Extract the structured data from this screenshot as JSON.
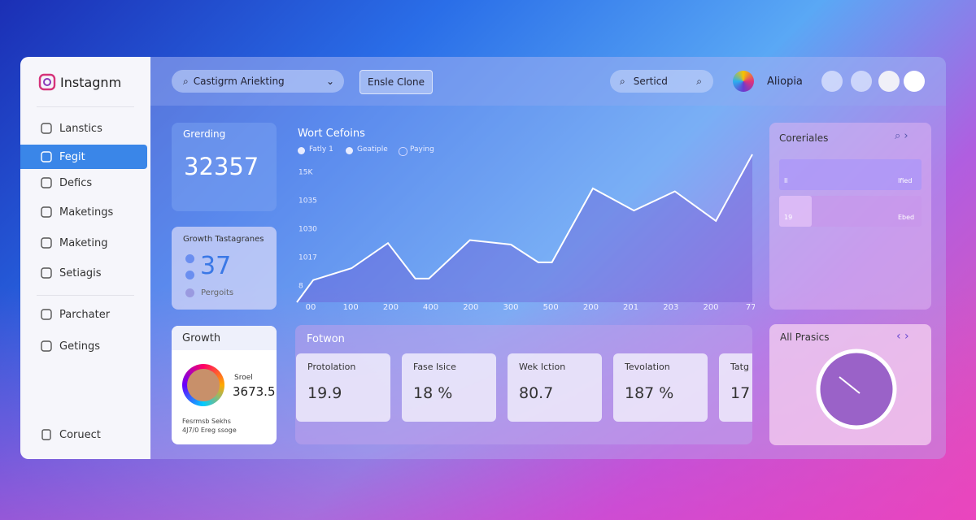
{
  "brand": "Instagnm",
  "nav": {
    "items": [
      "Lanstics",
      "Fegit",
      "Defics",
      "Maketings",
      "Maketing",
      "Setiagis",
      "Parchater",
      "Getings"
    ],
    "active": 1,
    "footer": "Coruect"
  },
  "topbar": {
    "search": "Castigrm Ariekting",
    "button": "Ensle Clone",
    "search2": "Serticd",
    "user": "Aliopia"
  },
  "card_trending": {
    "label": "Grerding",
    "value": "32357"
  },
  "card_growth_tags": {
    "label": "Growth Tastagranes",
    "value": "37",
    "note": "Pergoits"
  },
  "card_growth": {
    "title": "Growth",
    "small": "Sroel",
    "value": "3673.5",
    "line1": "Fesrmsb Sekhs",
    "line2": "4J7/0 Ereg ssoge"
  },
  "main_chart": {
    "type": "line",
    "title": "Wort Cefoins",
    "legend": [
      "Fatly 1",
      "Geatiple",
      "Paying"
    ],
    "y_labels": [
      "15K",
      "1035",
      "1030",
      "1017",
      "8"
    ],
    "x_labels": [
      "00",
      "100",
      "200",
      "400",
      "200",
      "300",
      "500",
      "200",
      "201",
      "203",
      "200",
      "77"
    ],
    "x": [
      0,
      3.6,
      12,
      20,
      26,
      29,
      38,
      47,
      53,
      56,
      65,
      74,
      83,
      92,
      100
    ],
    "values": [
      0,
      15,
      23,
      40,
      16,
      16,
      42,
      39,
      27,
      27,
      77,
      62,
      75,
      55,
      100
    ],
    "xlim": [
      0,
      100
    ],
    "ylim": [
      0,
      100
    ],
    "color": "#ffffff"
  },
  "categories_panel": {
    "title": "Coreriales",
    "rows": [
      [
        "Il",
        "Ified"
      ],
      [
        "19",
        "Ebed"
      ]
    ]
  },
  "bottom_panel": {
    "title": "Fotwon",
    "metrics": [
      {
        "label": "Protolation",
        "value": "19.9"
      },
      {
        "label": "Fase Isice",
        "value": "18 %"
      },
      {
        "label": "Wek Iction",
        "value": "80.7"
      },
      {
        "label": "Tevolation",
        "value": "187 %"
      },
      {
        "label": "Tatg",
        "value": "17"
      }
    ]
  },
  "all_panel": {
    "title": "All Prasics"
  }
}
